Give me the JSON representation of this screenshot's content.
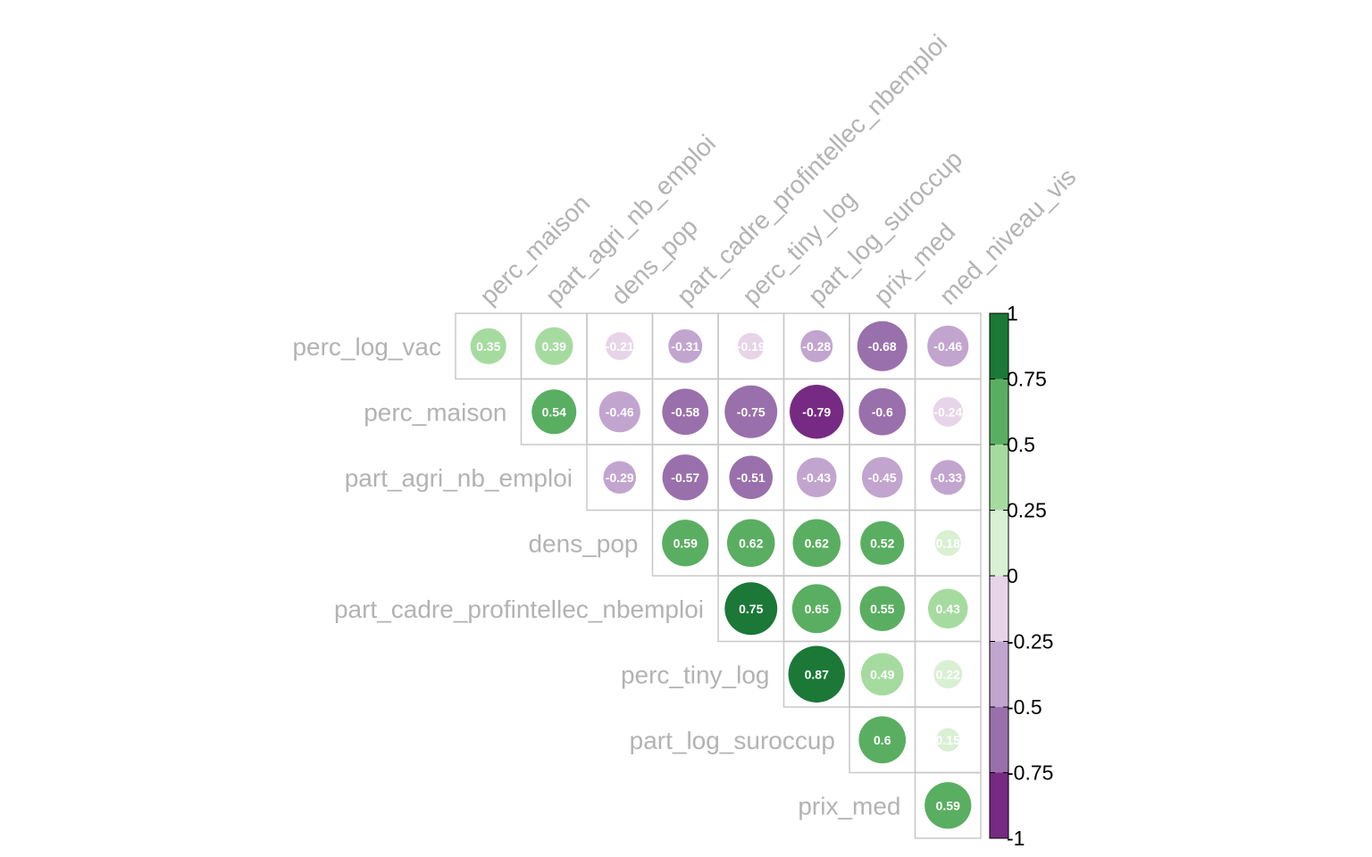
{
  "chart_data": {
    "type": "heatmap",
    "style": "circle correlation matrix, upper triangle",
    "rows": [
      "perc_log_vac",
      "perc_maison",
      "part_agri_nb_emploi",
      "dens_pop",
      "part_cadre_profintellec_nbemploi",
      "perc_tiny_log",
      "part_log_suroccup",
      "prix_med"
    ],
    "columns": [
      "perc_maison",
      "part_agri_nb_emploi",
      "dens_pop",
      "part_cadre_profintellec_nbemploi",
      "perc_tiny_log",
      "part_log_suroccup",
      "prix_med",
      "med_niveau_vis"
    ],
    "values": [
      [
        0.35,
        0.39,
        -0.21,
        -0.31,
        -0.19,
        -0.28,
        -0.68,
        -0.46
      ],
      [
        null,
        0.54,
        -0.46,
        -0.58,
        -0.75,
        -0.79,
        -0.6,
        -0.24
      ],
      [
        null,
        null,
        -0.29,
        -0.57,
        -0.51,
        -0.43,
        -0.45,
        -0.33
      ],
      [
        null,
        null,
        null,
        0.59,
        0.62,
        0.62,
        0.52,
        0.18
      ],
      [
        null,
        null,
        null,
        null,
        0.75,
        0.65,
        0.55,
        0.43
      ],
      [
        null,
        null,
        null,
        null,
        null,
        0.87,
        0.49,
        0.22
      ],
      [
        null,
        null,
        null,
        null,
        null,
        null,
        0.6,
        0.15
      ],
      [
        null,
        null,
        null,
        null,
        null,
        null,
        null,
        0.59
      ]
    ],
    "value_labels": [
      [
        "0.35",
        "0.39",
        "-0.21",
        "-0.31",
        "-0.19",
        "-0.28",
        "-0.68",
        "-0.46"
      ],
      [
        null,
        "0.54",
        "-0.46",
        "-0.58",
        "-0.75",
        "-0.79",
        "-0.6",
        "-0.24"
      ],
      [
        null,
        null,
        "-0.29",
        "-0.57",
        "-0.51",
        "-0.43",
        "-0.45",
        "-0.33"
      ],
      [
        null,
        null,
        null,
        "0.59",
        "0.62",
        "0.62",
        "0.52",
        "0.18"
      ],
      [
        null,
        null,
        null,
        null,
        "0.75",
        "0.65",
        "0.55",
        "0.43"
      ],
      [
        null,
        null,
        null,
        null,
        null,
        "0.87",
        "0.49",
        "0.22"
      ],
      [
        null,
        null,
        null,
        null,
        null,
        null,
        "0.6",
        "0.15"
      ],
      [
        null,
        null,
        null,
        null,
        null,
        null,
        null,
        "0.59"
      ]
    ],
    "color_scale": {
      "range": [
        -1,
        1
      ],
      "ticks": [
        "1",
        "0.75",
        "0.5",
        "0.25",
        "0",
        "-0.25",
        "-0.5",
        "-0.75",
        "-1"
      ],
      "bins": [
        {
          "from": 0.75,
          "to": 1,
          "color": "#1b7837"
        },
        {
          "from": 0.5,
          "to": 0.75,
          "color": "#5aae61"
        },
        {
          "from": 0.25,
          "to": 0.5,
          "color": "#a6dba0"
        },
        {
          "from": 0,
          "to": 0.25,
          "color": "#d9f0d3"
        },
        {
          "from": -0.25,
          "to": 0,
          "color": "#e7d4e8"
        },
        {
          "from": -0.5,
          "to": -0.25,
          "color": "#c2a5cf"
        },
        {
          "from": -0.75,
          "to": -0.5,
          "color": "#9970ab"
        },
        {
          "from": -1,
          "to": -0.75,
          "color": "#762a83"
        }
      ]
    },
    "label_color": "#b3b3b3",
    "grid_color": "#c8c8c8",
    "value_text_color": "#ffffff",
    "legend_placement": "right"
  }
}
